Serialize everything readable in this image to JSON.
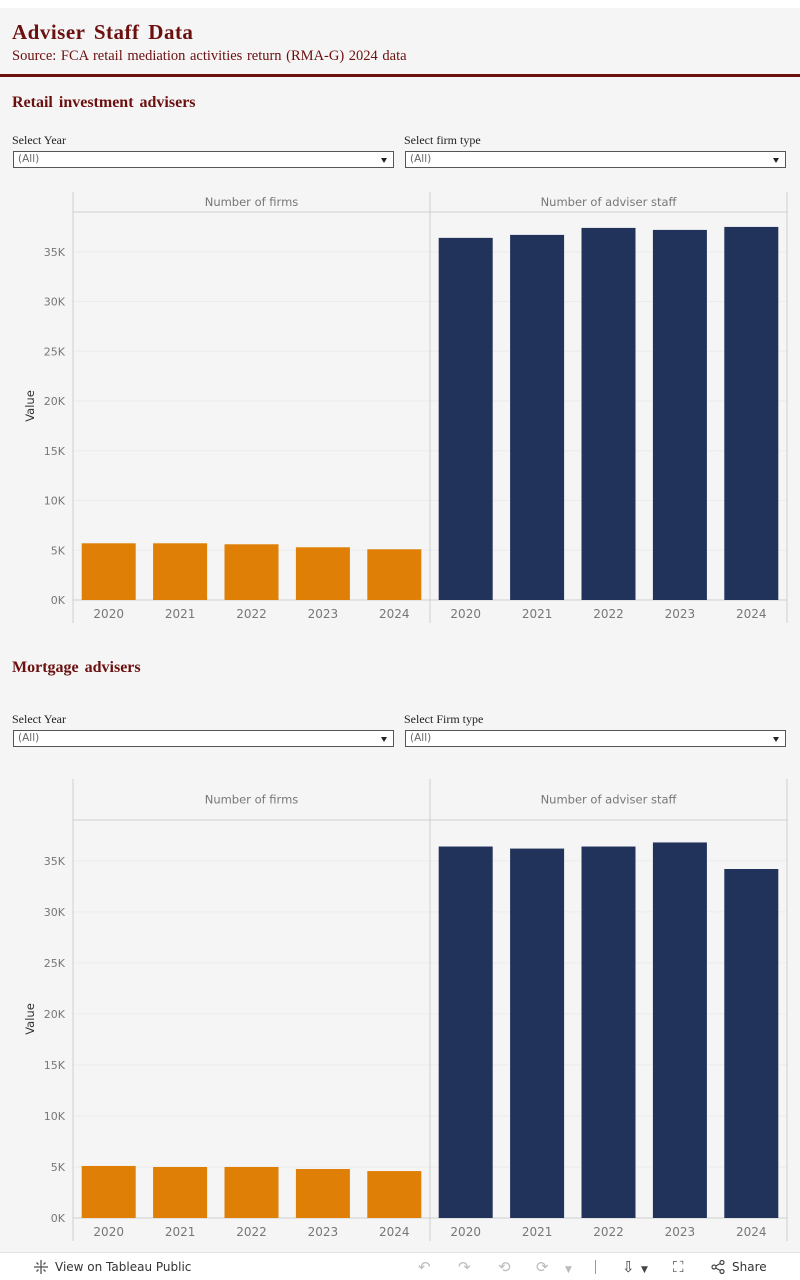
{
  "header": {
    "title": "Adviser Staff Data",
    "subtitle": "Source: FCA retail mediation activities return (RMA-G) 2024 data"
  },
  "sections": [
    {
      "title": "Retail investment advisers",
      "filters": [
        {
          "label": "Select Year",
          "value": "(All)"
        },
        {
          "label": "Select firm type",
          "value": "(All)"
        }
      ]
    },
    {
      "title": "Mortgage advisers",
      "filters": [
        {
          "label": "Select Year",
          "value": "(All)"
        },
        {
          "label": "Select Firm type",
          "value": "(All)"
        }
      ]
    }
  ],
  "chart_data": [
    {
      "type": "bar",
      "title": "Retail investment advisers",
      "ylabel": "Value",
      "ylim": [
        0,
        39000
      ],
      "yticks": [
        0,
        5000,
        10000,
        15000,
        20000,
        25000,
        30000,
        35000
      ],
      "ytick_labels": [
        "0K",
        "5K",
        "10K",
        "15K",
        "20K",
        "25K",
        "30K",
        "35K"
      ],
      "categories": [
        "2020",
        "2021",
        "2022",
        "2023",
        "2024"
      ],
      "series": [
        {
          "name": "Number of firms",
          "color": "#e07f05",
          "values": [
            5700,
            5700,
            5600,
            5300,
            5100
          ]
        },
        {
          "name": "Number of adviser staff",
          "color": "#22335b",
          "values": [
            36400,
            36700,
            37400,
            37200,
            37500
          ]
        }
      ]
    },
    {
      "type": "bar",
      "title": "Mortgage advisers",
      "ylabel": "Value",
      "ylim": [
        0,
        39000
      ],
      "yticks": [
        0,
        5000,
        10000,
        15000,
        20000,
        25000,
        30000,
        35000
      ],
      "ytick_labels": [
        "0K",
        "5K",
        "10K",
        "15K",
        "20K",
        "25K",
        "30K",
        "35K"
      ],
      "categories": [
        "2020",
        "2021",
        "2022",
        "2023",
        "2024"
      ],
      "series": [
        {
          "name": "Number of firms",
          "color": "#e07f05",
          "values": [
            5100,
            5000,
            5000,
            4800,
            4600
          ]
        },
        {
          "name": "Number of adviser staff",
          "color": "#22335b",
          "values": [
            36400,
            36200,
            36400,
            36800,
            34200
          ]
        }
      ]
    }
  ],
  "footer": {
    "view_label": "View on Tableau Public",
    "share_label": "Share",
    "icons": [
      "tableau-logo-icon",
      "undo-icon",
      "redo-icon",
      "revert-icon",
      "refresh-icon",
      "pause-icon",
      "download-icon",
      "fullscreen-icon",
      "share-icon"
    ]
  }
}
